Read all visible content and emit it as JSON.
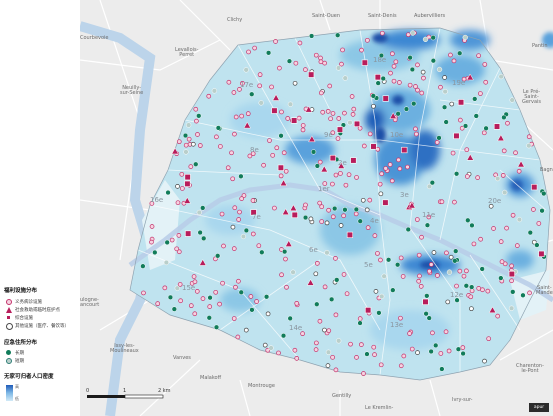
{
  "legend": {
    "welfare_title": "福利设施分布",
    "welfare_items": [
      {
        "symbol": "dot-pink",
        "label": "义务病诊设施"
      },
      {
        "symbol": "triangle",
        "label": "社会救助或临时庇护点"
      },
      {
        "symbol": "square",
        "label": "综合设施"
      },
      {
        "symbol": "dot-dark",
        "label": "其他设施（医疗、餐饮等）"
      }
    ],
    "shelter_title": "应急住所分布",
    "shelter_items": [
      {
        "symbol": "dot-green",
        "label": "长期"
      },
      {
        "symbol": "dot-grey",
        "label": "短期"
      }
    ],
    "density_title": "无家可归者人口密度",
    "density_high": "高",
    "density_low": "低",
    "colors": {
      "pink": "#c3326b",
      "magenta": "#b81d5b",
      "green": "#117c5a",
      "blue": "#1f5bb8"
    }
  },
  "places": {
    "clichy": "Clichy",
    "saint_ouen": "Saint-Ouen",
    "saint_denis": "Saint-Denis",
    "aubervilliers": "Aubervilliers",
    "courbevoie": "Courbevoie",
    "levallois": "Levallois-\nPerret",
    "pantin": "Pantin",
    "neuilly": "Neuilly-\nsur-Seine",
    "le_pre": "Le Pré-\nSaint-\nGervais",
    "bagnolet": "Bagn",
    "boulogne": "ulogne-\nancourt",
    "issy": "Issy-les-\nMoulineaux",
    "vanves": "Vanves",
    "malakoff": "Malakoff",
    "montrouge": "Montrouge",
    "gentilly": "Gentilly",
    "kremlin": "Le Kremlin-",
    "ivry": "Ivry-sur-",
    "charenton": "Charenton-\nle-Pont",
    "saint_mande": "Saint-\nMande"
  },
  "arrondissements": [
    "1er",
    "2e",
    "3e",
    "4e",
    "5e",
    "6e",
    "7e",
    "8e",
    "9e",
    "10e",
    "11e",
    "12e",
    "13e",
    "14e",
    "15e",
    "16e",
    "17e",
    "18e",
    "19e",
    "20e"
  ],
  "scale": {
    "zero": "0",
    "one": "1",
    "two": "2 km"
  },
  "credit": "apur"
}
